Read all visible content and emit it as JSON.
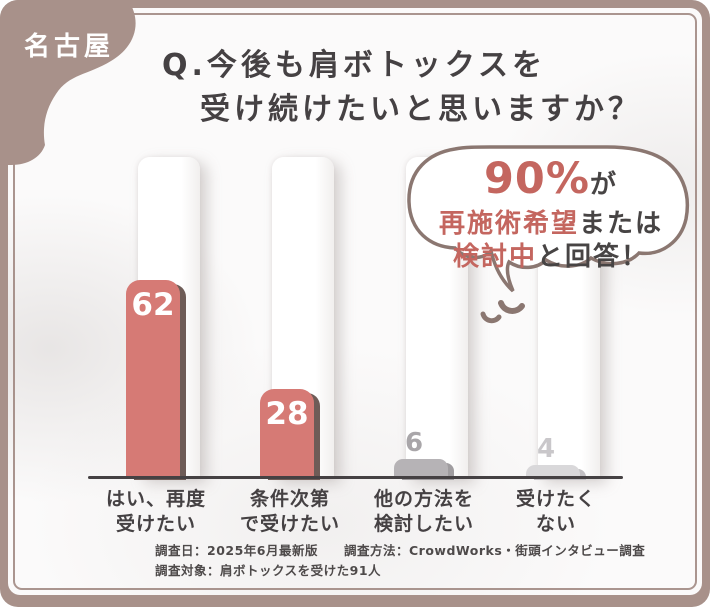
{
  "badge": {
    "label": "名古屋"
  },
  "title": {
    "line1": "Q.今後も肩ボトックスを",
    "line2": "受け続けたいと思いますか？"
  },
  "bubble": {
    "line1_accent": "90%",
    "line1_rest": "が",
    "line2_accent": "再施術希望",
    "line2_rest": "または",
    "line3_accent": "検討中",
    "line3_rest": "と回答！"
  },
  "chart_data": {
    "type": "bar",
    "title": "Q.今後も肩ボトックスを受け続けたいと思いますか？",
    "categories": [
      [
        "はい、再度",
        "受けたい"
      ],
      [
        "条件次第",
        "で受けたい"
      ],
      [
        "他の方法を",
        "検討したい"
      ],
      [
        "受けたく",
        "ない"
      ]
    ],
    "values": [
      62,
      28,
      6,
      4
    ],
    "bar_colors": [
      "#d67a75",
      "#d67a75",
      "#b6b3b6",
      "#d9d8da"
    ],
    "bar_shadow_colors": [
      "#6e5c57",
      "#6e5c57",
      "#a09da0",
      "#c2c0c3"
    ],
    "value_label_colors": [
      "#ffffff",
      "#ffffff",
      "#a9a6a9",
      "#c9c7ca"
    ],
    "annotation": "90%が再施術希望または検討中と回答！",
    "grid": false,
    "legend": false
  },
  "footer": {
    "line1": "調査日：2025年6月最新版　　調査方法：CrowdWorks・街頭インタビュー調査",
    "line2": "調査対象：肩ボトックスを受けた91人"
  },
  "colors": {
    "frame": "#a8918a",
    "inner_line": "#9b837b",
    "bar_accent": "#d67a75",
    "accent_text": "#c4665f",
    "dark_text": "#454143",
    "bubble_border": "#8b7771"
  }
}
